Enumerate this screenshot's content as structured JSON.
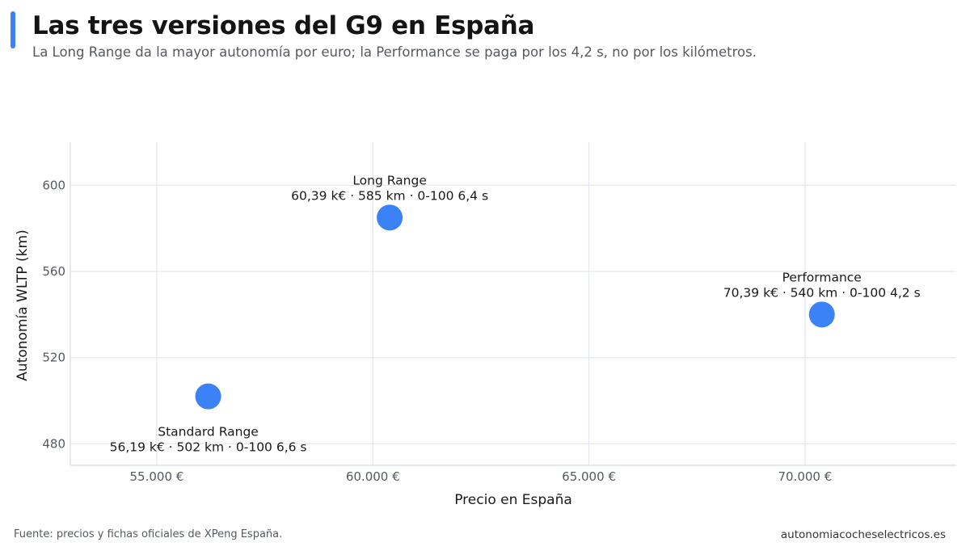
{
  "header": {
    "title": "Las tres versiones del G9 en España",
    "subtitle": "La Long Range da la mayor autonomía por euro; la Performance se paga por los 4,2 s, no por los kilómetros."
  },
  "footer": {
    "source": "Fuente: precios y fichas oficiales de XPeng España.",
    "site": "autonomiacocheselectricos.es"
  },
  "colors": {
    "accent": "#3b82f6",
    "point": "#3b82f6",
    "grid": "#e2e6ee"
  },
  "chart_data": {
    "type": "scatter",
    "xlabel": "Precio en España",
    "ylabel": "Autonomía WLTP (km)",
    "xlim": [
      53000,
      73500
    ],
    "ylim": [
      470,
      620
    ],
    "x_ticks": [
      55000,
      60000,
      65000,
      70000
    ],
    "x_tick_labels": [
      "55.000 €",
      "60.000 €",
      "65.000 €",
      "70.000 €"
    ],
    "y_ticks": [
      480,
      520,
      560,
      600
    ],
    "y_tick_labels": [
      "480",
      "520",
      "560",
      "600"
    ],
    "grid": true,
    "points": [
      {
        "name": "Standard Range",
        "x": 56190,
        "y": 502,
        "label": "56,19 k€ · 502 km · 0-100 6,6 s",
        "label_position": "below"
      },
      {
        "name": "Long Range",
        "x": 60390,
        "y": 585,
        "label": "60,39 k€ · 585 km · 0-100 6,4 s",
        "label_position": "above"
      },
      {
        "name": "Performance",
        "x": 70390,
        "y": 540,
        "label": "70,39 k€ · 540 km · 0-100 4,2 s",
        "label_position": "above"
      }
    ]
  }
}
